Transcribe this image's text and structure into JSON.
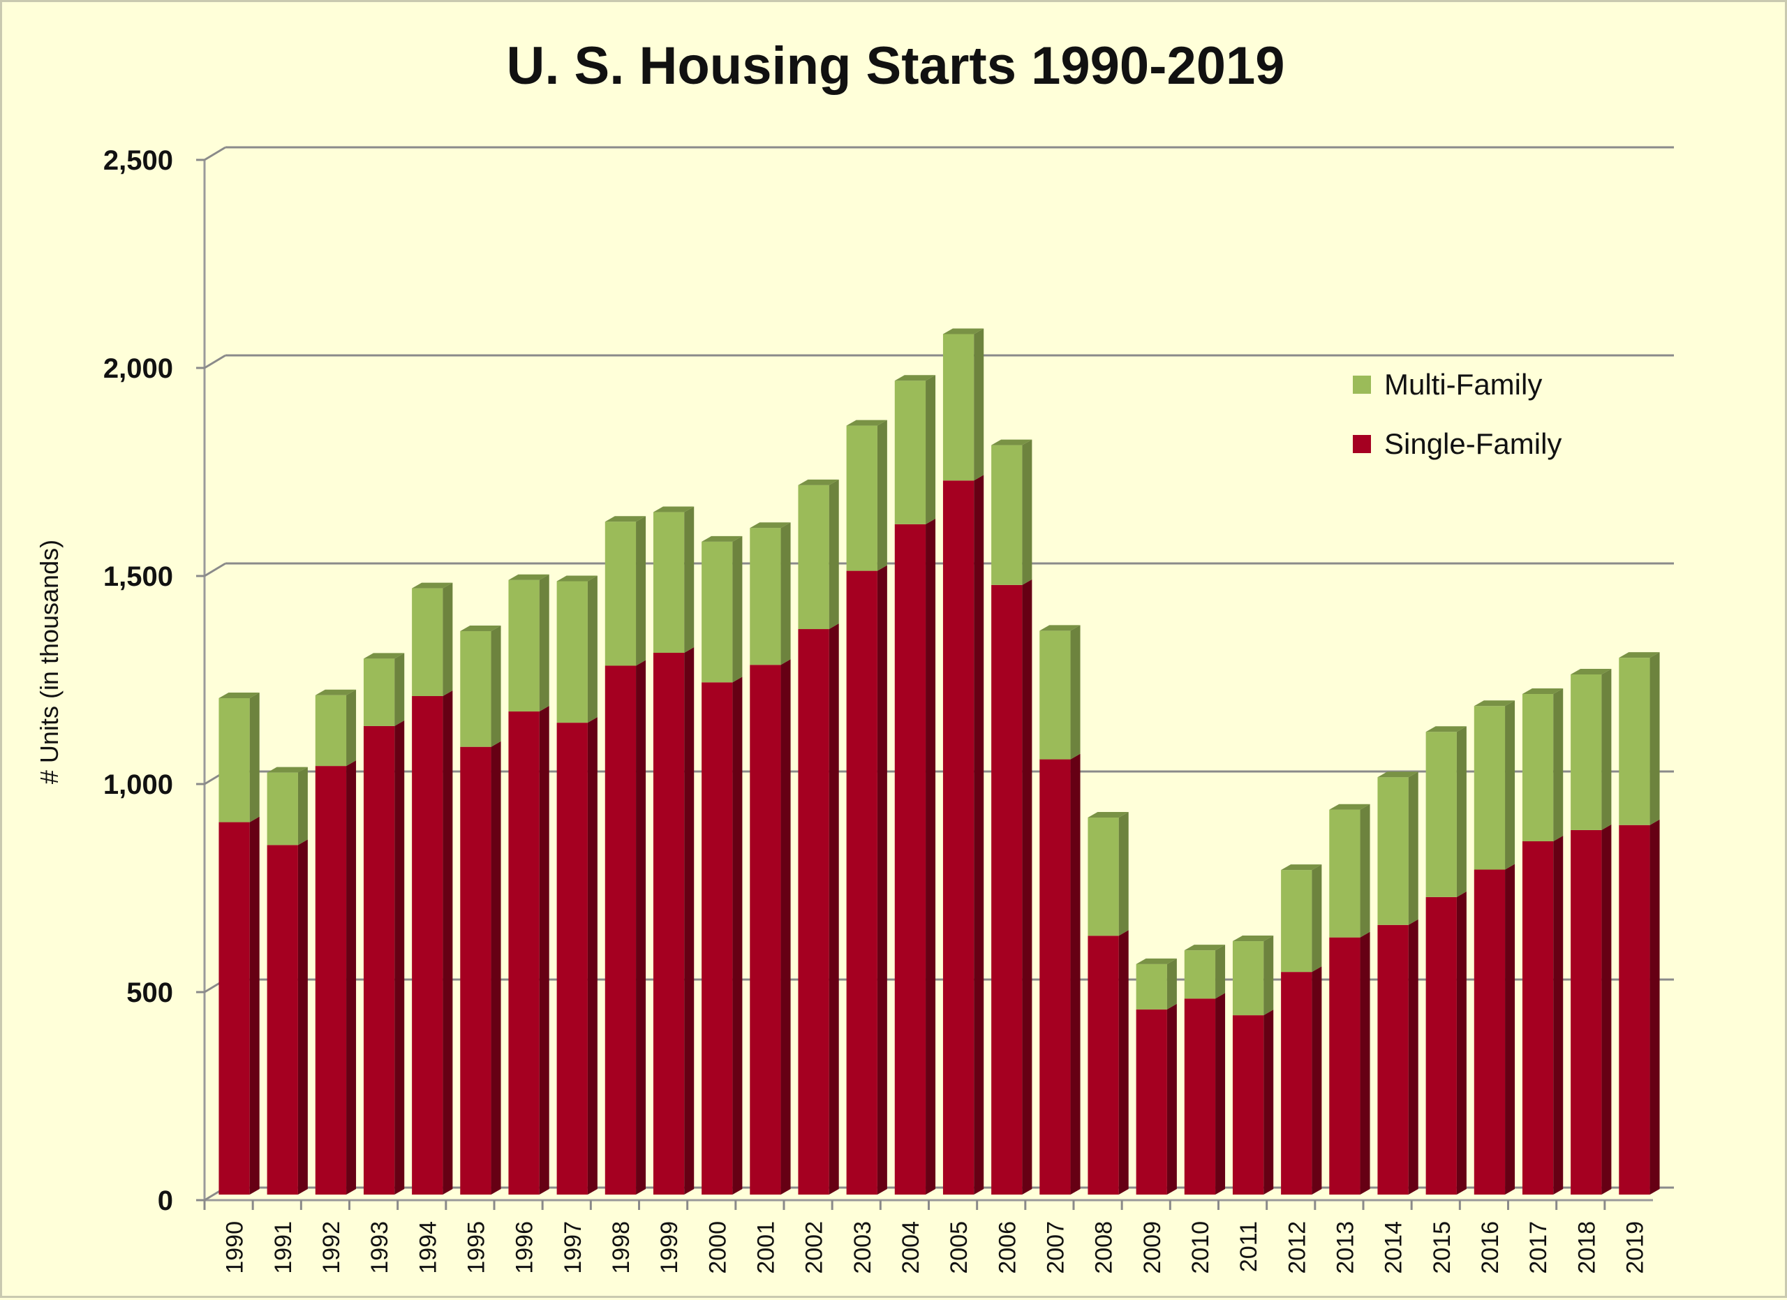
{
  "chart_data": {
    "type": "bar",
    "stacked": true,
    "title": "U. S. Housing Starts 1990-2019",
    "ylabel": "# Units (in  thousands)",
    "xlabel": "",
    "ylim": [
      0,
      2500
    ],
    "yticks": [
      0,
      500,
      1000,
      1500,
      2000,
      2500
    ],
    "ytick_labels": [
      "0",
      "500",
      "1,000",
      "1,500",
      "2,000",
      "2,500"
    ],
    "grid": true,
    "legend_position": "top-right",
    "categories": [
      "1990",
      "1991",
      "1992",
      "1993",
      "1994",
      "1995",
      "1996",
      "1997",
      "1998",
      "1999",
      "2000",
      "2001",
      "2002",
      "2003",
      "2004",
      "2005",
      "2006",
      "2007",
      "2008",
      "2009",
      "2010",
      "2011",
      "2012",
      "2013",
      "2014",
      "2015",
      "2016",
      "2017",
      "2018",
      "2019"
    ],
    "series": [
      {
        "name": "Single-Family",
        "color": "#a50021",
        "values": [
          895,
          840,
          1030,
          1126,
          1198,
          1076,
          1161,
          1134,
          1271,
          1302,
          1231,
          1273,
          1359,
          1499,
          1611,
          1716,
          1465,
          1046,
          622,
          445,
          471,
          431,
          535,
          618,
          648,
          715,
          781,
          849,
          876,
          888
        ]
      },
      {
        "name": "Multi-Family",
        "color": "#9bbb59",
        "values": [
          298,
          174,
          170,
          162,
          259,
          278,
          316,
          340,
          346,
          338,
          338,
          329,
          346,
          349,
          345,
          352,
          336,
          309,
          284,
          109,
          116,
          178,
          245,
          307,
          355,
          397,
          393,
          354,
          374,
          402
        ]
      }
    ]
  }
}
